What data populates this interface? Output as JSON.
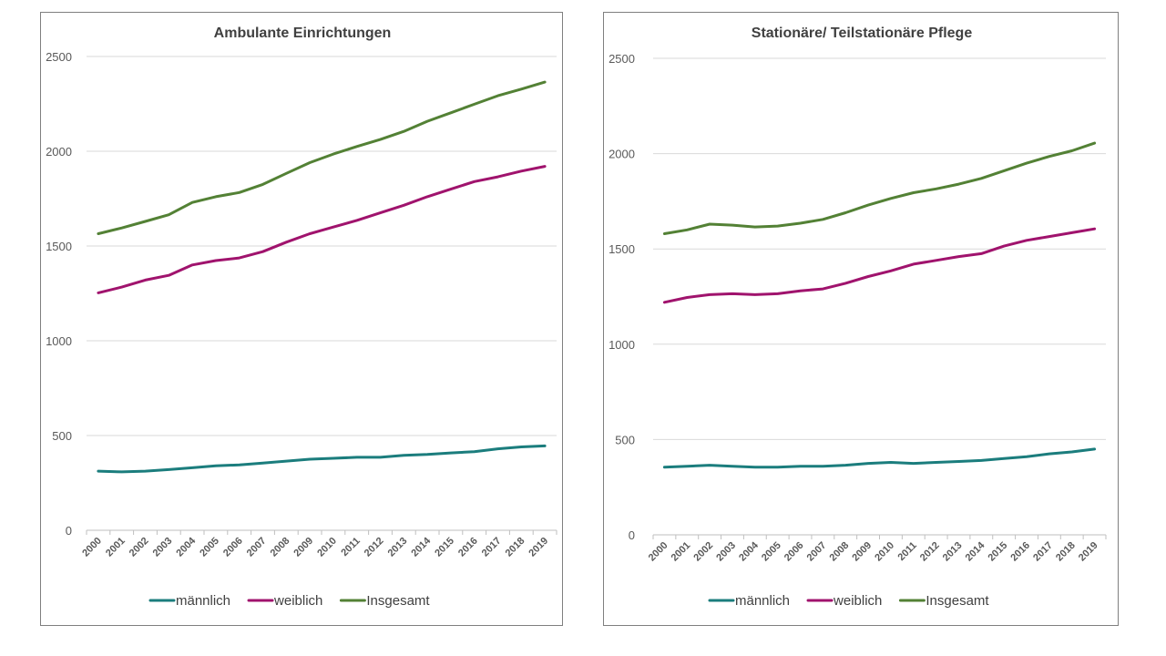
{
  "chart_data": [
    {
      "type": "line",
      "title": "Ambulante Einrichtungen",
      "xlabel": "",
      "ylabel": "",
      "ylim": [
        0,
        2500
      ],
      "yticks": [
        "0",
        "500",
        "1000",
        "1500",
        "2000",
        "2500"
      ],
      "x": [
        "2000",
        "2001",
        "2002",
        "2003",
        "2004",
        "2005",
        "2006",
        "2007",
        "2008",
        "2009",
        "2010",
        "2011",
        "2012",
        "2013",
        "2014",
        "2015",
        "2016",
        "2017",
        "2018",
        "2019"
      ],
      "grid": true,
      "legend": "bottom",
      "series": [
        {
          "name": "männlich",
          "color": "#1b7d7d",
          "values": [
            312,
            308,
            312,
            320,
            330,
            340,
            345,
            355,
            365,
            375,
            380,
            385,
            385,
            395,
            400,
            408,
            415,
            430,
            440,
            445
          ]
        },
        {
          "name": "weiblich",
          "color": "#a0136d",
          "values": [
            1253,
            1283,
            1320,
            1345,
            1400,
            1423,
            1437,
            1470,
            1520,
            1565,
            1600,
            1635,
            1675,
            1715,
            1760,
            1800,
            1840,
            1865,
            1895,
            1920
          ]
        },
        {
          "name": "Insgesamt",
          "color": "#538135",
          "values": [
            1565,
            1595,
            1630,
            1665,
            1730,
            1760,
            1782,
            1825,
            1883,
            1940,
            1985,
            2025,
            2062,
            2105,
            2158,
            2203,
            2248,
            2293,
            2328,
            2365
          ]
        }
      ]
    },
    {
      "type": "line",
      "title": "Stationäre/ Teilstationäre Pflege",
      "xlabel": "",
      "ylabel": "",
      "ylim": [
        0,
        2500
      ],
      "yticks": [
        "0",
        "500",
        "1000",
        "1500",
        "2000",
        "2500"
      ],
      "x": [
        "2000",
        "2001",
        "2002",
        "2003",
        "2004",
        "2005",
        "2006",
        "2007",
        "2008",
        "2009",
        "2010",
        "2011",
        "2012",
        "2013",
        "2014",
        "2015",
        "2016",
        "2017",
        "2018",
        "2019"
      ],
      "grid": true,
      "legend": "bottom",
      "series": [
        {
          "name": "männlich",
          "color": "#1b7d7d",
          "values": [
            355,
            360,
            365,
            360,
            355,
            355,
            360,
            360,
            365,
            375,
            380,
            375,
            380,
            385,
            390,
            400,
            410,
            425,
            435,
            450
          ]
        },
        {
          "name": "weiblich",
          "color": "#a0136d",
          "values": [
            1220,
            1245,
            1260,
            1265,
            1260,
            1265,
            1280,
            1290,
            1320,
            1355,
            1385,
            1420,
            1440,
            1460,
            1475,
            1515,
            1545,
            1565,
            1585,
            1605
          ]
        },
        {
          "name": "Insgesamt",
          "color": "#538135",
          "values": [
            1580,
            1600,
            1630,
            1625,
            1615,
            1620,
            1635,
            1655,
            1690,
            1730,
            1765,
            1795,
            1815,
            1840,
            1870,
            1910,
            1950,
            1985,
            2015,
            2055
          ]
        }
      ]
    }
  ]
}
